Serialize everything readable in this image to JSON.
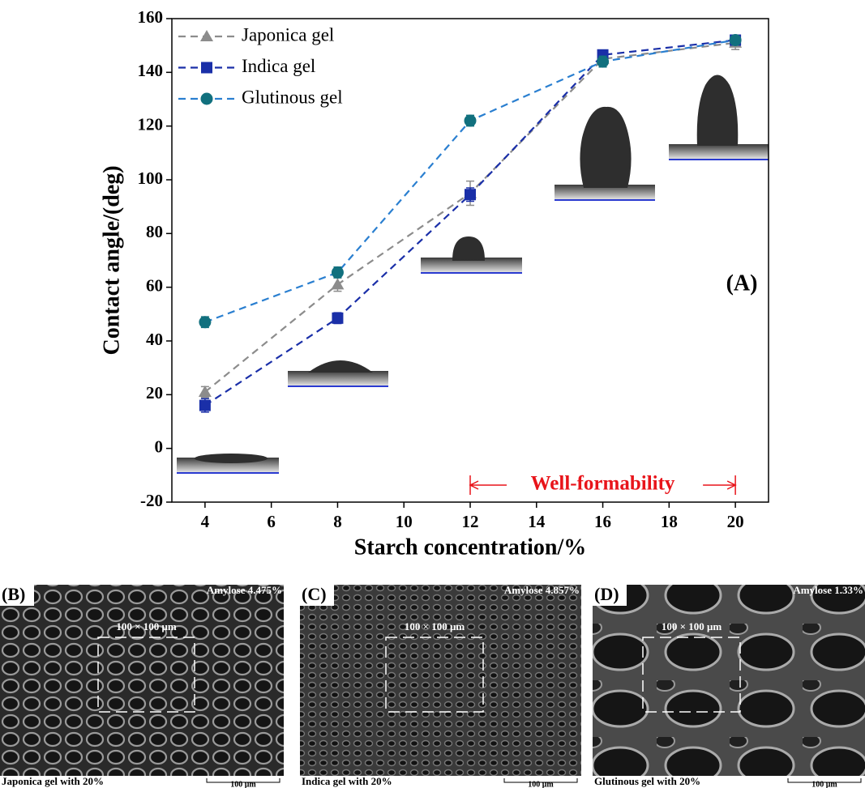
{
  "chart_data": {
    "type": "line",
    "x_label": "Starch concentration/%",
    "y_label": "Contact angle/(deg)",
    "panel_label": "(A)",
    "x": [
      4,
      8,
      12,
      16,
      20
    ],
    "series": [
      {
        "name": "Japonica gel",
        "color": "#8c8c8c",
        "marker": "triangle",
        "values": [
          21,
          61,
          95,
          145,
          151
        ],
        "errors": [
          2,
          2.5,
          4.5,
          2,
          2.5
        ]
      },
      {
        "name": "Indica gel",
        "color": "#1a2fa8",
        "marker": "square",
        "values": [
          16,
          48.5,
          94.5,
          146.5,
          152
        ],
        "errors": [
          2.5,
          2,
          2.5,
          1.5,
          1.5
        ]
      },
      {
        "name": "Glutinous gel",
        "color": "#2a7fd0",
        "marker_color": "#11707e",
        "marker": "circle",
        "values": [
          47,
          65.5,
          122,
          144,
          152
        ],
        "errors": [
          2,
          2,
          2,
          2,
          1.5
        ]
      }
    ],
    "xlim": [
      3,
      21
    ],
    "ylim": [
      -20,
      160
    ],
    "xticks": [
      4,
      6,
      8,
      10,
      12,
      14,
      16,
      18,
      20
    ],
    "yticks": [
      -20,
      0,
      20,
      40,
      60,
      80,
      100,
      120,
      140,
      160
    ],
    "legend": "top-left",
    "annotation": {
      "text": "Well-formability",
      "x_range": [
        12,
        20
      ],
      "color": "#e8141a"
    }
  },
  "panels": [
    {
      "label": "(B)",
      "amylose": "Amylose 4.475%",
      "roi": "100 × 100 μm",
      "caption": "Japonica gel with 20%",
      "scale": "100 μm"
    },
    {
      "label": "(C)",
      "amylose": "Amylose 4.857%",
      "roi": "100 × 100 μm",
      "caption": "Indica gel with 20%",
      "scale": "100 μm"
    },
    {
      "label": "(D)",
      "amylose": "Amylose 1.33%",
      "roi": "100 × 100 μm",
      "caption": "Glutinous gel with 20%",
      "scale": "100 μm"
    }
  ]
}
